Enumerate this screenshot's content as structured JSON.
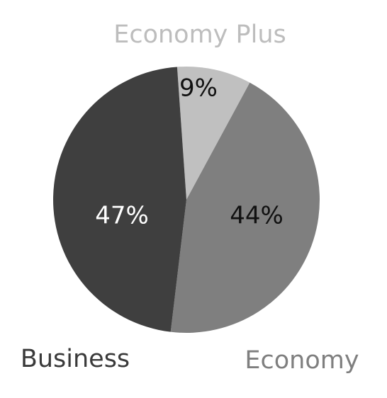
{
  "chart_data": {
    "type": "pie",
    "title": "",
    "slices": [
      {
        "label": "Economy Plus",
        "value": 9,
        "display": "9%",
        "color": "#c0c0c0",
        "label_color": "#bdbdbd",
        "value_text_color": "#111111"
      },
      {
        "label": "Economy",
        "value": 44,
        "display": "44%",
        "color": "#7f7f7f",
        "label_color": "#7f7f7f",
        "value_text_color": "#111111"
      },
      {
        "label": "Business",
        "value": 47,
        "display": "47%",
        "color": "#3f3f3f",
        "label_color": "#3a3a3a",
        "value_text_color": "#ffffff"
      }
    ]
  }
}
